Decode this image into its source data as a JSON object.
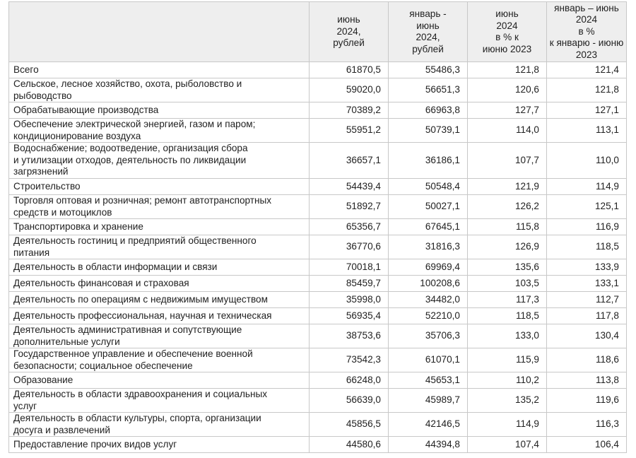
{
  "table": {
    "columns": [
      "",
      "июнь\n2024,\nрублей",
      "январь -\nиюнь\n2024,\nрублей",
      "июнь\n2024\nв % к\nиюню 2023",
      "январь – июнь\n2024\nв %\nк январю - июню\n2023"
    ],
    "rows": [
      {
        "name": "Всего",
        "values": [
          "61870,5",
          "55486,3",
          "121,8",
          "121,4"
        ],
        "lines": 1
      },
      {
        "name": "Сельское, лесное хозяйство, охота, рыболовство и\nрыбоводство",
        "values": [
          "59020,0",
          "56651,3",
          "120,6",
          "121,8"
        ],
        "lines": 2
      },
      {
        "name": "Обрабатывающие производства",
        "values": [
          "70389,2",
          "66963,8",
          "127,7",
          "127,1"
        ],
        "lines": 1
      },
      {
        "name": "Обеспечение электрической энергией, газом и паром;\nкондиционирование воздуха",
        "values": [
          "55951,2",
          "50739,1",
          "114,0",
          "113,1"
        ],
        "lines": 2
      },
      {
        "name": "Водоснабжение; водоотведение, организация сбора\nи утилизации отходов, деятельность по ликвидации\nзагрязнений",
        "values": [
          "36657,1",
          "36186,1",
          "107,7",
          "110,0"
        ],
        "lines": 3
      },
      {
        "name": "Строительство",
        "values": [
          "54439,4",
          "50548,4",
          "121,9",
          "114,9"
        ],
        "lines": 1
      },
      {
        "name": "Торговля оптовая и розничная; ремонт автотранспортных\nсредств и мотоциклов",
        "values": [
          "51892,7",
          "50027,1",
          "126,2",
          "125,1"
        ],
        "lines": 2
      },
      {
        "name": "Транспортировка и хранение",
        "values": [
          "65356,7",
          "67645,1",
          "115,8",
          "116,9"
        ],
        "lines": 1
      },
      {
        "name": "Деятельность гостиниц и предприятий общественного\nпитания",
        "values": [
          "36770,6",
          "31816,3",
          "126,9",
          "118,5"
        ],
        "lines": 2
      },
      {
        "name": "Деятельность в области информации и связи",
        "values": [
          "70018,1",
          "69969,4",
          "135,6",
          "133,9"
        ],
        "lines": 1
      },
      {
        "name": "Деятельность финансовая и страховая",
        "values": [
          "85459,7",
          "100208,6",
          "103,5",
          "133,1"
        ],
        "lines": 1
      },
      {
        "name": "Деятельность по операциям с недвижимым имуществом",
        "values": [
          "35998,0",
          "34482,0",
          "117,3",
          "112,7"
        ],
        "lines": 1
      },
      {
        "name": "Деятельность профессиональная, научная и техническая",
        "values": [
          "56935,4",
          "52210,0",
          "118,5",
          "117,8"
        ],
        "lines": 1
      },
      {
        "name": "Деятельность административная и сопутствующие\nдополнительные услуги",
        "values": [
          "38753,6",
          "35706,3",
          "133,0",
          "130,4"
        ],
        "lines": 2
      },
      {
        "name": "Государственное управление и обеспечение военной\nбезопасности; социальное обеспечение",
        "values": [
          "73542,3",
          "61070,1",
          "115,9",
          "118,6"
        ],
        "lines": 2
      },
      {
        "name": "Образование",
        "values": [
          "66248,0",
          "45653,1",
          "110,2",
          "113,8"
        ],
        "lines": 1
      },
      {
        "name": "Деятельность в области здравоохранения и социальных\nуслуг",
        "values": [
          "56639,0",
          "45989,7",
          "135,2",
          "119,6"
        ],
        "lines": 2
      },
      {
        "name": "Деятельность в области культуры, спорта, организации\nдосуга и развлечений",
        "values": [
          "45856,5",
          "42146,5",
          "114,9",
          "116,3"
        ],
        "lines": 2
      },
      {
        "name": "Предоставление прочих видов услуг",
        "values": [
          "44580,6",
          "44394,8",
          "107,4",
          "106,4"
        ],
        "lines": 1
      }
    ]
  }
}
